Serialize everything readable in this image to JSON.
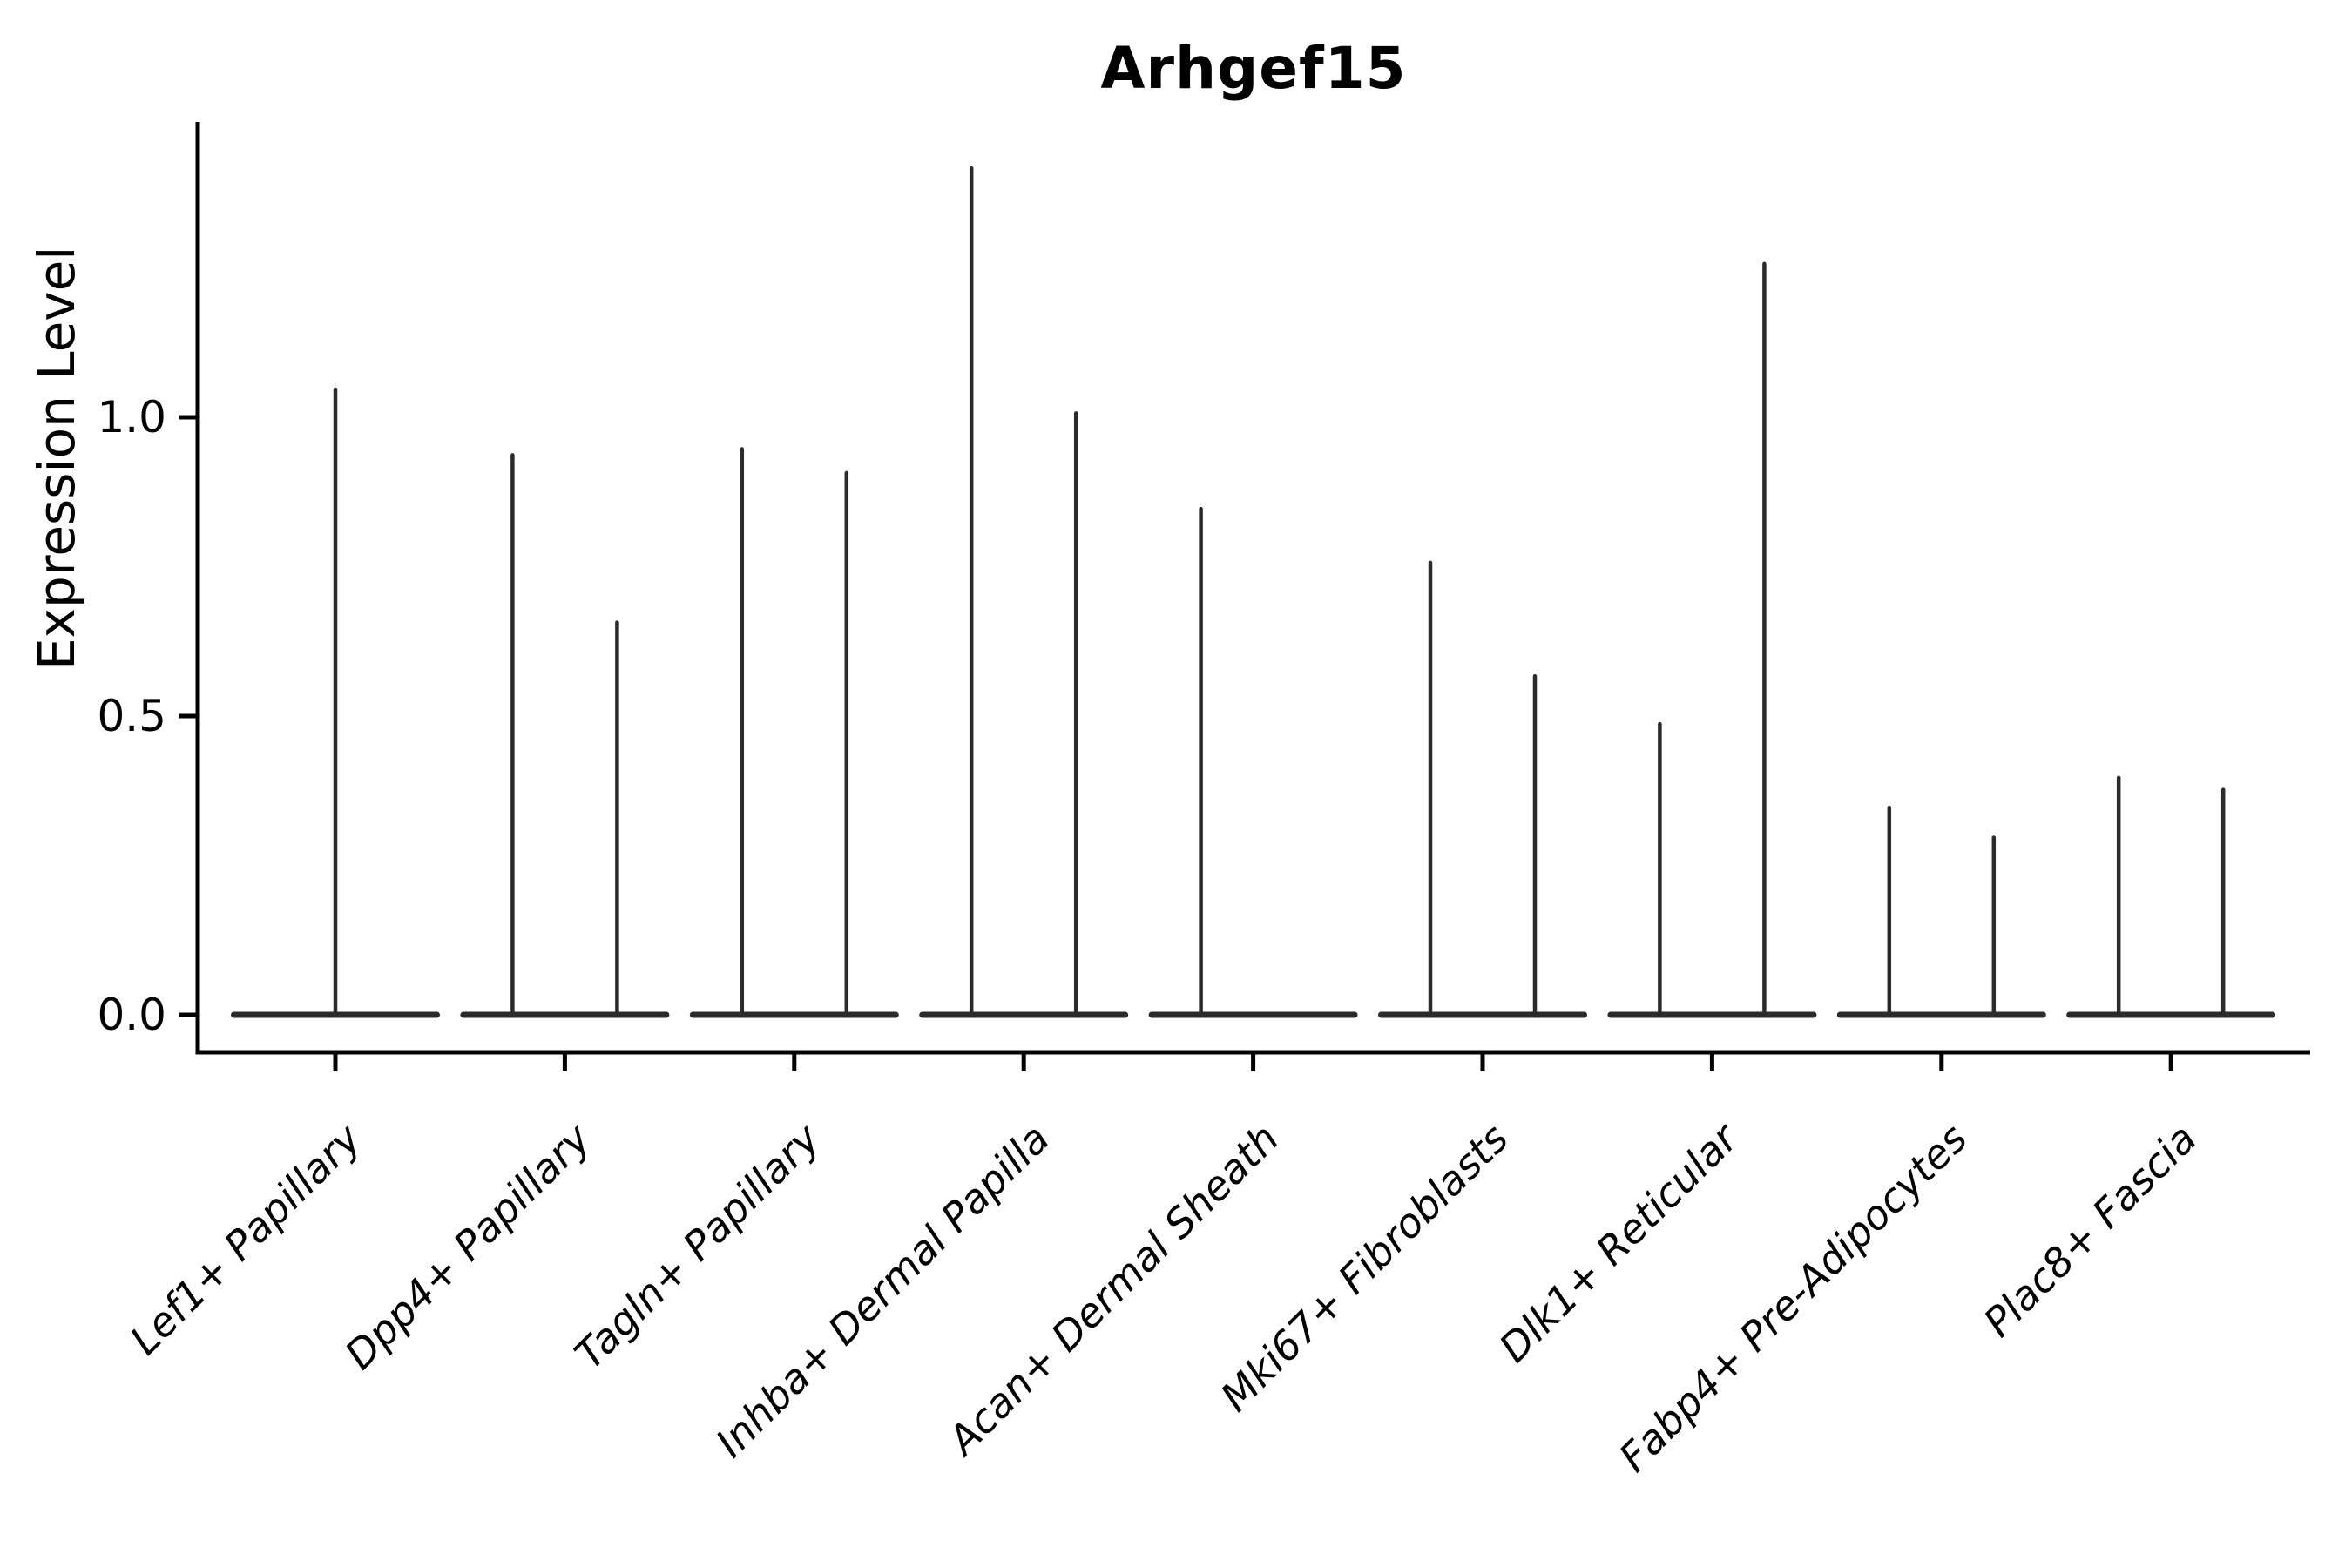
{
  "title": "Arhgef15",
  "colors": {
    "background": "#ffffff",
    "violin_stroke": "#2b2b2b",
    "axis": "#000000",
    "text": "#000000"
  },
  "chart_data": {
    "type": "violin",
    "title": "Arhgef15",
    "ylabel": "Expression Level",
    "xlabel": "",
    "ylim": [
      0,
      1.49
    ],
    "y_ticks": [
      0.0,
      0.5,
      1.0
    ],
    "y_tick_labels": [
      "0.0",
      "0.5",
      "1.0"
    ],
    "grid": false,
    "legend_position": "none",
    "x_tick_rotation_deg": 45,
    "description": "Collapsed violin plot: each violin renders as a flat horizontal line at expression 0 with a thin vertical spike reaching the maximum expression value; one or two grouped violins per cell-type category.",
    "categories": [
      "Lef1+ Papillary",
      "Dpp4+ Papillary",
      "Tagln+ Papillary",
      "Inhba+ Dermal Papilla",
      "Acan+ Dermal Sheath",
      "Mki67+ Fibroblasts",
      "Dlk1+ Reticular",
      "Fabp4+ Pre-Adipocytes",
      "Plac8+ Fascia"
    ],
    "violins": [
      {
        "category": "Lef1+ Papillary",
        "spikes": [
          {
            "position": "center",
            "max": 1.05
          }
        ]
      },
      {
        "category": "Dpp4+ Papillary",
        "spikes": [
          {
            "position": "left",
            "max": 0.94
          },
          {
            "position": "right",
            "max": 0.66
          }
        ]
      },
      {
        "category": "Tagln+ Papillary",
        "spikes": [
          {
            "position": "left",
            "max": 0.95
          },
          {
            "position": "right",
            "max": 0.91
          }
        ]
      },
      {
        "category": "Inhba+ Dermal Papilla",
        "spikes": [
          {
            "position": "left",
            "max": 1.42
          },
          {
            "position": "right",
            "max": 1.01
          }
        ]
      },
      {
        "category": "Acan+ Dermal Sheath",
        "spikes": [
          {
            "position": "left",
            "max": 0.85
          }
        ]
      },
      {
        "category": "Mki67+ Fibroblasts",
        "spikes": [
          {
            "position": "left",
            "max": 0.76
          },
          {
            "position": "right",
            "max": 0.57
          }
        ]
      },
      {
        "category": "Dlk1+ Reticular",
        "spikes": [
          {
            "position": "left",
            "max": 0.49
          },
          {
            "position": "right",
            "max": 1.26
          }
        ]
      },
      {
        "category": "Fabp4+ Pre-Adipocytes",
        "spikes": [
          {
            "position": "left",
            "max": 0.35
          },
          {
            "position": "right",
            "max": 0.3
          }
        ]
      },
      {
        "category": "Plac8+ Fascia",
        "spikes": [
          {
            "position": "left",
            "max": 0.4
          },
          {
            "position": "right",
            "max": 0.38
          }
        ]
      }
    ]
  }
}
